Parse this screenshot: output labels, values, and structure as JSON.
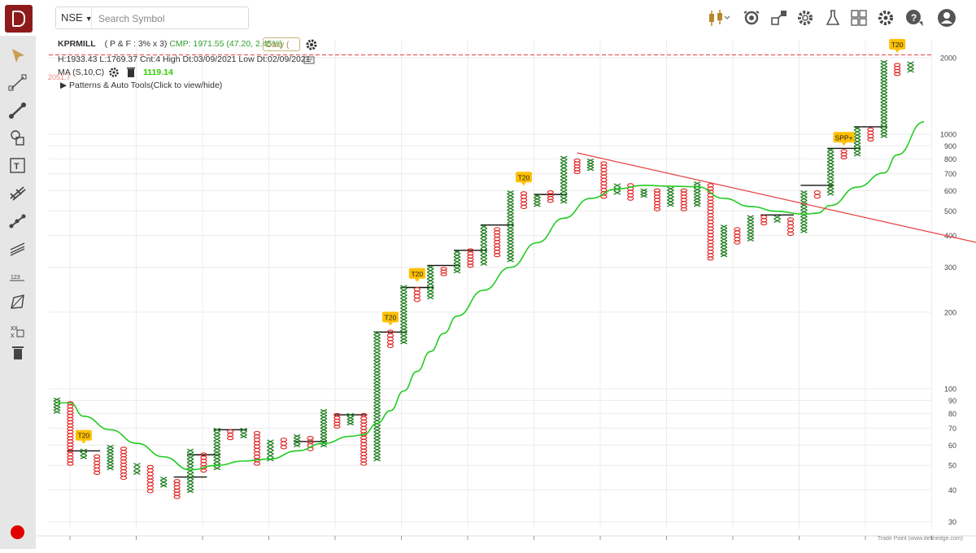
{
  "toolbar": {
    "exchange": "NSE",
    "search_placeholder": "Search Symbol",
    "icons": [
      "candlestick-icon",
      "replay-icon",
      "scan-icon",
      "settings-gear-icon",
      "lab-icon",
      "layout-grid-icon",
      "gear-icon",
      "chat-icon",
      "user-icon"
    ]
  },
  "sidebar": {
    "tools": [
      "cursor-icon",
      "line-tool-icon",
      "segment-tool-icon",
      "shape-tool-icon",
      "text-tool-icon",
      "fib-tool-icon",
      "channel-tool-icon",
      "parallel-lines-icon",
      "measure-icon",
      "polygon-tool-icon",
      "pattern-tool-icon",
      "delete-icon"
    ]
  },
  "header": {
    "symbol": "KPRMILL",
    "params": "( P & F : 3% x 3)",
    "cmp": "CMP: 1971.55 (47.20, 2.45%)",
    "timeframe": "Daily (",
    "stats": "H:1933.43 L:1769.37 Cnt:4 High Dt:03/09/2021 Low Dt:02/09/2021",
    "ma_label": "MA (S,10,C)",
    "ma_value": "1119.14",
    "patterns_label": "▶  Patterns & Auto Tools(Click to view/hide)",
    "hline_label": "2051.7"
  },
  "footer": "Trade Point (www.definedge.com)",
  "colors": {
    "x": "#1a7a1a",
    "o": "#e02020",
    "ma": "#22cc22",
    "trend": "#e84040",
    "tag_bg": "#ffc000",
    "grid": "#ececec"
  },
  "chart_data": {
    "type": "point-and-figure",
    "box_pct": 3,
    "reversal": 3,
    "y_scale": "log",
    "ylim": [
      28,
      2350
    ],
    "y_ticks": [
      30,
      40,
      50,
      60,
      70,
      80,
      90,
      100,
      200,
      300,
      400,
      500,
      600,
      700,
      800,
      900,
      1000,
      2000
    ],
    "horizontal_line": 2051.7,
    "columns": [
      {
        "t": "X",
        "low": 80,
        "high": 92
      },
      {
        "t": "O",
        "low": 50,
        "high": 89
      },
      {
        "t": "X",
        "low": 53,
        "high": 58
      },
      {
        "t": "O",
        "low": 46,
        "high": 55
      },
      {
        "t": "X",
        "low": 48,
        "high": 60
      },
      {
        "t": "O",
        "low": 44,
        "high": 59
      },
      {
        "t": "X",
        "low": 46,
        "high": 51
      },
      {
        "t": "O",
        "low": 39,
        "high": 50
      },
      {
        "t": "X",
        "low": 41,
        "high": 45
      },
      {
        "t": "O",
        "low": 37,
        "high": 44
      },
      {
        "t": "X",
        "low": 39,
        "high": 58
      },
      {
        "t": "O",
        "low": 47,
        "high": 56
      },
      {
        "t": "X",
        "low": 48,
        "high": 70
      },
      {
        "t": "O",
        "low": 63,
        "high": 69
      },
      {
        "t": "X",
        "low": 64,
        "high": 70
      },
      {
        "t": "O",
        "low": 50,
        "high": 68
      },
      {
        "t": "X",
        "low": 52,
        "high": 63
      },
      {
        "t": "O",
        "low": 58,
        "high": 64
      },
      {
        "t": "X",
        "low": 59,
        "high": 66
      },
      {
        "t": "O",
        "low": 57,
        "high": 65
      },
      {
        "t": "X",
        "low": 59,
        "high": 83
      },
      {
        "t": "O",
        "low": 70,
        "high": 80
      },
      {
        "t": "X",
        "low": 72,
        "high": 80
      },
      {
        "t": "O",
        "low": 50,
        "high": 80
      },
      {
        "t": "X",
        "low": 52,
        "high": 168
      },
      {
        "t": "O",
        "low": 145,
        "high": 170
      },
      {
        "t": "X",
        "low": 150,
        "high": 255
      },
      {
        "t": "O",
        "low": 220,
        "high": 250
      },
      {
        "t": "X",
        "low": 225,
        "high": 305
      },
      {
        "t": "O",
        "low": 278,
        "high": 300
      },
      {
        "t": "X",
        "low": 285,
        "high": 350
      },
      {
        "t": "O",
        "low": 300,
        "high": 355
      },
      {
        "t": "X",
        "low": 305,
        "high": 440
      },
      {
        "t": "O",
        "low": 330,
        "high": 430
      },
      {
        "t": "X",
        "low": 315,
        "high": 600
      },
      {
        "t": "O",
        "low": 510,
        "high": 595
      },
      {
        "t": "X",
        "low": 520,
        "high": 580
      },
      {
        "t": "O",
        "low": 540,
        "high": 600
      },
      {
        "t": "X",
        "low": 535,
        "high": 820
      },
      {
        "t": "O",
        "low": 700,
        "high": 800
      },
      {
        "t": "X",
        "low": 720,
        "high": 800
      },
      {
        "t": "O",
        "low": 560,
        "high": 780
      },
      {
        "t": "X",
        "low": 580,
        "high": 640
      },
      {
        "t": "O",
        "low": 550,
        "high": 640
      },
      {
        "t": "X",
        "low": 565,
        "high": 610
      },
      {
        "t": "O",
        "low": 500,
        "high": 610
      },
      {
        "t": "X",
        "low": 520,
        "high": 620
      },
      {
        "t": "O",
        "low": 500,
        "high": 610
      },
      {
        "t": "X",
        "low": 520,
        "high": 650
      },
      {
        "t": "O",
        "low": 320,
        "high": 640
      },
      {
        "t": "X",
        "low": 330,
        "high": 440
      },
      {
        "t": "O",
        "low": 370,
        "high": 430
      },
      {
        "t": "X",
        "low": 380,
        "high": 480
      },
      {
        "t": "O",
        "low": 440,
        "high": 480
      },
      {
        "t": "X",
        "low": 450,
        "high": 480
      },
      {
        "t": "O",
        "low": 400,
        "high": 470
      },
      {
        "t": "X",
        "low": 410,
        "high": 600
      },
      {
        "t": "O",
        "low": 560,
        "high": 600
      },
      {
        "t": "X",
        "low": 575,
        "high": 880
      },
      {
        "t": "O",
        "low": 800,
        "high": 870
      },
      {
        "t": "X",
        "low": 820,
        "high": 1070
      },
      {
        "t": "O",
        "low": 940,
        "high": 1060
      },
      {
        "t": "X",
        "low": 970,
        "high": 1950
      },
      {
        "t": "O",
        "low": 1700,
        "high": 1900
      },
      {
        "t": "X",
        "low": 1750,
        "high": 1930
      }
    ],
    "moving_average": [
      {
        "c": 0,
        "v": 88
      },
      {
        "c": 1,
        "v": 88
      },
      {
        "c": 2,
        "v": 78
      },
      {
        "c": 4,
        "v": 69
      },
      {
        "c": 6,
        "v": 61
      },
      {
        "c": 8,
        "v": 54
      },
      {
        "c": 10,
        "v": 48
      },
      {
        "c": 12,
        "v": 50
      },
      {
        "c": 14,
        "v": 52
      },
      {
        "c": 16,
        "v": 53
      },
      {
        "c": 18,
        "v": 57
      },
      {
        "c": 20,
        "v": 61
      },
      {
        "c": 22,
        "v": 65
      },
      {
        "c": 23,
        "v": 66
      },
      {
        "c": 24,
        "v": 73
      },
      {
        "c": 25,
        "v": 82
      },
      {
        "c": 26,
        "v": 98
      },
      {
        "c": 27,
        "v": 117
      },
      {
        "c": 28,
        "v": 140
      },
      {
        "c": 29,
        "v": 165
      },
      {
        "c": 30,
        "v": 193
      },
      {
        "c": 32,
        "v": 244
      },
      {
        "c": 34,
        "v": 300
      },
      {
        "c": 36,
        "v": 375
      },
      {
        "c": 38,
        "v": 468
      },
      {
        "c": 40,
        "v": 560
      },
      {
        "c": 42,
        "v": 610
      },
      {
        "c": 44,
        "v": 630
      },
      {
        "c": 46,
        "v": 625
      },
      {
        "c": 48,
        "v": 622
      },
      {
        "c": 50,
        "v": 560
      },
      {
        "c": 52,
        "v": 520
      },
      {
        "c": 54,
        "v": 498
      },
      {
        "c": 56,
        "v": 485
      },
      {
        "c": 57,
        "v": 490
      },
      {
        "c": 58,
        "v": 525
      },
      {
        "c": 60,
        "v": 620
      },
      {
        "c": 62,
        "v": 705
      },
      {
        "c": 63,
        "v": 830
      },
      {
        "c": 65,
        "v": 1119
      }
    ],
    "trendline": {
      "from": {
        "c": 39,
        "v": 845
      },
      "to": {
        "c": 70,
        "v": 365
      }
    },
    "support_lines": [
      {
        "from": 1,
        "to": 3,
        "v": 57
      },
      {
        "from": 9,
        "to": 11,
        "v": 45
      },
      {
        "from": 10,
        "to": 12,
        "v": 55
      },
      {
        "from": 12,
        "to": 14,
        "v": 69
      },
      {
        "from": 18,
        "to": 20,
        "v": 62
      },
      {
        "from": 21,
        "to": 23,
        "v": 79
      },
      {
        "from": 24,
        "to": 26,
        "v": 167
      },
      {
        "from": 26,
        "to": 28,
        "v": 250
      },
      {
        "from": 28,
        "to": 30,
        "v": 305
      },
      {
        "from": 30,
        "to": 32,
        "v": 350
      },
      {
        "from": 32,
        "to": 34,
        "v": 440
      },
      {
        "from": 36,
        "to": 38,
        "v": 580
      },
      {
        "from": 53,
        "to": 55,
        "v": 482
      },
      {
        "from": 56,
        "to": 58,
        "v": 630
      },
      {
        "from": 58,
        "to": 60,
        "v": 880
      },
      {
        "from": 60,
        "to": 62,
        "v": 1070
      }
    ],
    "annotations": [
      {
        "label": "T20",
        "c": 2,
        "v": 59
      },
      {
        "label": "T20",
        "c": 25,
        "v": 172
      },
      {
        "label": "T20",
        "c": 27,
        "v": 255
      },
      {
        "label": "T20",
        "c": 35,
        "v": 610
      },
      {
        "label": "SPP+",
        "c": 59,
        "v": 875
      },
      {
        "label": "T20",
        "c": 63,
        "v": 2030
      }
    ]
  }
}
